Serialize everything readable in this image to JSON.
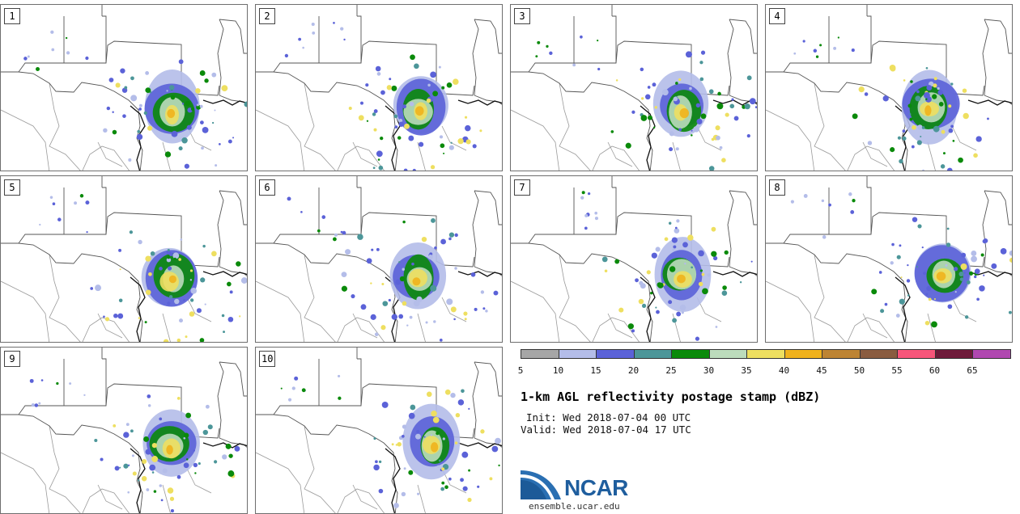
{
  "panels": [
    {
      "label": "1"
    },
    {
      "label": "2"
    },
    {
      "label": "3"
    },
    {
      "label": "4"
    },
    {
      "label": "5"
    },
    {
      "label": "6"
    },
    {
      "label": "7"
    },
    {
      "label": "8"
    },
    {
      "label": "9"
    },
    {
      "label": "10"
    }
  ],
  "colorbar": {
    "colors": [
      "#a6a6a6",
      "#b4bde9",
      "#5b62d8",
      "#4c9699",
      "#0a8a0a",
      "#bcdcbc",
      "#eedf60",
      "#f0b21d",
      "#bd8433",
      "#8a5c40",
      "#f7557a",
      "#6e1a3a",
      "#b048b0"
    ],
    "ticks": [
      "5",
      "10",
      "15",
      "20",
      "25",
      "30",
      "35",
      "40",
      "45",
      "50",
      "55",
      "60",
      "65"
    ]
  },
  "title": "1-km AGL reflectivity postage stamp (dBZ)",
  "init": "Init: Wed 2018-07-04 00 UTC",
  "valid": "Valid: Wed 2018-07-04 17 UTC",
  "logo": {
    "text": "NCAR",
    "url": "ensemble.ucar.edu",
    "color": "#1f5e9e"
  }
}
